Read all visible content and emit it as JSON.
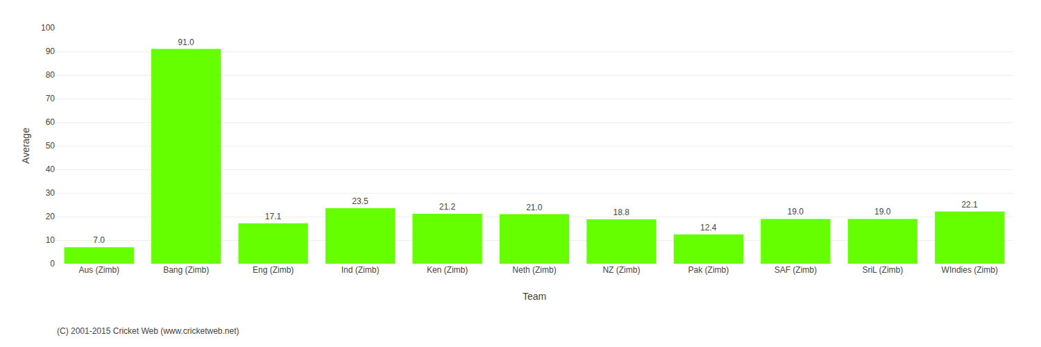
{
  "chart_data": {
    "type": "bar",
    "categories": [
      "Aus (Zimb)",
      "Bang (Zimb)",
      "Eng (Zimb)",
      "Ind (Zimb)",
      "Ken (Zimb)",
      "Neth (Zimb)",
      "NZ (Zimb)",
      "Pak (Zimb)",
      "SAF (Zimb)",
      "SriL (Zimb)",
      "WIndies (Zimb)"
    ],
    "values": [
      7.0,
      91.0,
      17.1,
      23.5,
      21.2,
      21.0,
      18.8,
      12.4,
      19.0,
      19.0,
      22.1
    ],
    "value_labels": [
      "7.0",
      "91.0",
      "17.1",
      "23.5",
      "21.2",
      "21.0",
      "18.8",
      "12.4",
      "19.0",
      "19.0",
      "22.1"
    ],
    "data_labels": true,
    "color": "#66ff00",
    "xlabel": "Team",
    "ylabel": "Average",
    "ylim": [
      0,
      100
    ],
    "yticks": [
      0,
      10,
      20,
      30,
      40,
      50,
      60,
      70,
      80,
      90,
      100
    ],
    "grid": true,
    "annotations": [
      "(C) 2001-2015 Cricket Web (www.cricketweb.net)"
    ]
  }
}
